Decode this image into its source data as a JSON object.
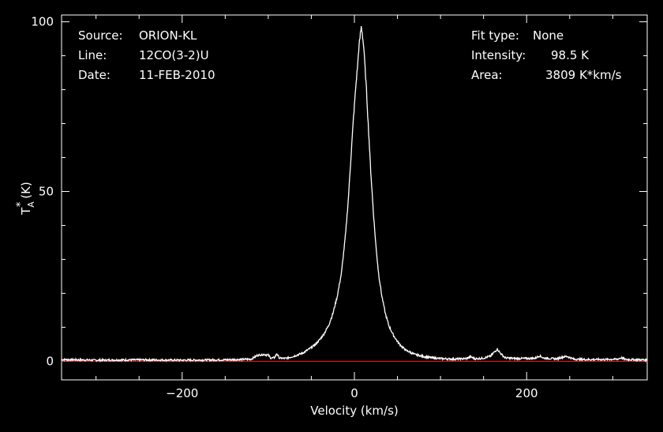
{
  "info": {
    "source_label": "Source:",
    "source_value": "ORION-KL",
    "line_label": "Line:",
    "line_value": "12CO(3-2)U",
    "date_label": "Date:",
    "date_value": "11-FEB-2010",
    "fit_label": "Fit type:",
    "fit_value": "None",
    "intensity_label": "Intensity:",
    "intensity_value": "98.5 K",
    "area_label": "Area:",
    "area_value": "3809 K*km/s"
  },
  "chart_data": {
    "type": "line",
    "title": "",
    "xlabel": "Velocity (km/s)",
    "ylabel_main": "T",
    "ylabel_sup": "*",
    "ylabel_sub": "A",
    "ylabel_unit": "(K)",
    "xlim": [
      -340,
      340
    ],
    "ylim": [
      -5.5,
      102
    ],
    "x_ticks": [
      -200,
      0,
      200
    ],
    "x_tick_labels": [
      "−200",
      "0",
      "200"
    ],
    "y_ticks": [
      0,
      50,
      100
    ],
    "y_tick_labels": [
      "0",
      "50",
      "100"
    ],
    "baseline": 0,
    "colors": {
      "background": "#000000",
      "axes": "#ffffff",
      "spectrum": "#ffffff",
      "baseline": "#ff2020"
    },
    "series": [
      {
        "x": [
          -340,
          -300,
          -250,
          -200,
          -150,
          -120,
          -112,
          -105,
          -100,
          -97,
          -93,
          -90,
          -87,
          -80,
          -70,
          -60,
          -50,
          -45,
          -40,
          -35,
          -30,
          -25,
          -20,
          -15,
          -10,
          -7,
          -4,
          -1,
          2,
          4,
          5,
          6,
          7,
          8,
          9,
          10,
          11,
          12,
          13,
          14,
          16,
          19,
          22,
          25,
          28,
          32,
          36,
          40,
          45,
          50,
          55,
          60,
          70,
          80,
          90,
          100,
          115,
          130,
          135,
          140,
          150,
          158,
          163,
          166,
          169,
          175,
          185,
          200,
          210,
          215,
          220,
          235,
          243,
          247,
          255,
          270,
          290,
          305,
          310,
          315,
          340
        ],
        "y": [
          0.5,
          0.3,
          0.4,
          0.3,
          0.4,
          0.6,
          1.8,
          2.0,
          1.8,
          0.9,
          1.0,
          2.2,
          0.9,
          0.8,
          1.5,
          2.4,
          4.0,
          5.0,
          6.4,
          8.2,
          10.5,
          14.0,
          19.0,
          26.0,
          38.0,
          48.0,
          60.0,
          72.0,
          82.0,
          88.0,
          92.0,
          94.0,
          96.5,
          98.5,
          97.0,
          94.5,
          92.0,
          88.0,
          84.0,
          80.0,
          70.0,
          56.0,
          44.0,
          34.0,
          26.0,
          19.0,
          14.0,
          10.5,
          7.8,
          5.8,
          4.3,
          3.2,
          2.0,
          1.4,
          1.0,
          0.8,
          0.6,
          0.8,
          1.3,
          0.7,
          0.9,
          1.5,
          2.8,
          3.6,
          2.5,
          1.0,
          0.8,
          0.8,
          0.9,
          1.6,
          0.9,
          0.7,
          1.3,
          1.4,
          0.6,
          0.5,
          0.5,
          0.6,
          1.0,
          0.5,
          0.4
        ]
      }
    ]
  }
}
